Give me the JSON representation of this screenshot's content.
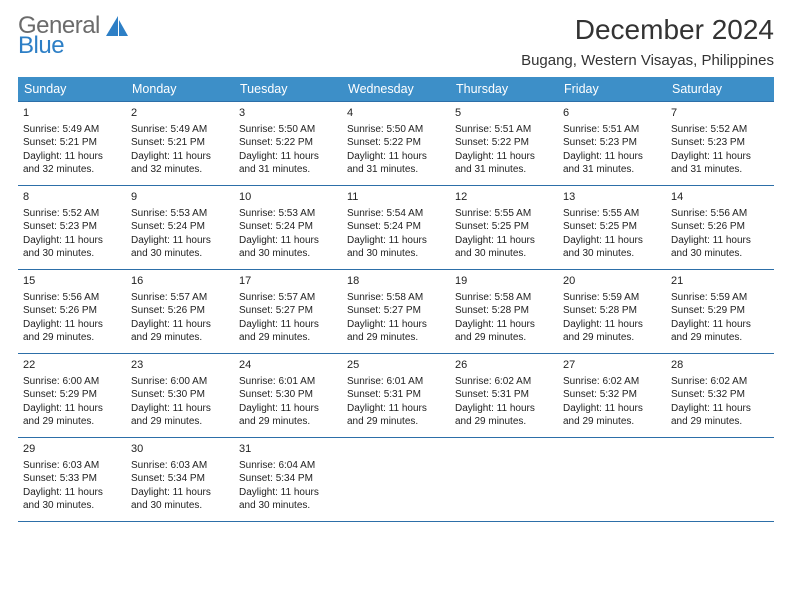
{
  "brand": {
    "line1": "General",
    "line2": "Blue"
  },
  "title": "December 2024",
  "location": "Bugang, Western Visayas, Philippines",
  "colors": {
    "header_bg": "#3d8fc8",
    "header_text": "#ffffff",
    "row_border": "#2d6fa8",
    "logo_gray": "#6b6b6b",
    "logo_blue": "#2d7fc6",
    "text": "#222222",
    "background": "#ffffff"
  },
  "day_headers": [
    "Sunday",
    "Monday",
    "Tuesday",
    "Wednesday",
    "Thursday",
    "Friday",
    "Saturday"
  ],
  "weeks": [
    [
      {
        "n": "1",
        "sr": "5:49 AM",
        "ss": "5:21 PM",
        "dl": "11 hours and 32 minutes."
      },
      {
        "n": "2",
        "sr": "5:49 AM",
        "ss": "5:21 PM",
        "dl": "11 hours and 32 minutes."
      },
      {
        "n": "3",
        "sr": "5:50 AM",
        "ss": "5:22 PM",
        "dl": "11 hours and 31 minutes."
      },
      {
        "n": "4",
        "sr": "5:50 AM",
        "ss": "5:22 PM",
        "dl": "11 hours and 31 minutes."
      },
      {
        "n": "5",
        "sr": "5:51 AM",
        "ss": "5:22 PM",
        "dl": "11 hours and 31 minutes."
      },
      {
        "n": "6",
        "sr": "5:51 AM",
        "ss": "5:23 PM",
        "dl": "11 hours and 31 minutes."
      },
      {
        "n": "7",
        "sr": "5:52 AM",
        "ss": "5:23 PM",
        "dl": "11 hours and 31 minutes."
      }
    ],
    [
      {
        "n": "8",
        "sr": "5:52 AM",
        "ss": "5:23 PM",
        "dl": "11 hours and 30 minutes."
      },
      {
        "n": "9",
        "sr": "5:53 AM",
        "ss": "5:24 PM",
        "dl": "11 hours and 30 minutes."
      },
      {
        "n": "10",
        "sr": "5:53 AM",
        "ss": "5:24 PM",
        "dl": "11 hours and 30 minutes."
      },
      {
        "n": "11",
        "sr": "5:54 AM",
        "ss": "5:24 PM",
        "dl": "11 hours and 30 minutes."
      },
      {
        "n": "12",
        "sr": "5:55 AM",
        "ss": "5:25 PM",
        "dl": "11 hours and 30 minutes."
      },
      {
        "n": "13",
        "sr": "5:55 AM",
        "ss": "5:25 PM",
        "dl": "11 hours and 30 minutes."
      },
      {
        "n": "14",
        "sr": "5:56 AM",
        "ss": "5:26 PM",
        "dl": "11 hours and 30 minutes."
      }
    ],
    [
      {
        "n": "15",
        "sr": "5:56 AM",
        "ss": "5:26 PM",
        "dl": "11 hours and 29 minutes."
      },
      {
        "n": "16",
        "sr": "5:57 AM",
        "ss": "5:26 PM",
        "dl": "11 hours and 29 minutes."
      },
      {
        "n": "17",
        "sr": "5:57 AM",
        "ss": "5:27 PM",
        "dl": "11 hours and 29 minutes."
      },
      {
        "n": "18",
        "sr": "5:58 AM",
        "ss": "5:27 PM",
        "dl": "11 hours and 29 minutes."
      },
      {
        "n": "19",
        "sr": "5:58 AM",
        "ss": "5:28 PM",
        "dl": "11 hours and 29 minutes."
      },
      {
        "n": "20",
        "sr": "5:59 AM",
        "ss": "5:28 PM",
        "dl": "11 hours and 29 minutes."
      },
      {
        "n": "21",
        "sr": "5:59 AM",
        "ss": "5:29 PM",
        "dl": "11 hours and 29 minutes."
      }
    ],
    [
      {
        "n": "22",
        "sr": "6:00 AM",
        "ss": "5:29 PM",
        "dl": "11 hours and 29 minutes."
      },
      {
        "n": "23",
        "sr": "6:00 AM",
        "ss": "5:30 PM",
        "dl": "11 hours and 29 minutes."
      },
      {
        "n": "24",
        "sr": "6:01 AM",
        "ss": "5:30 PM",
        "dl": "11 hours and 29 minutes."
      },
      {
        "n": "25",
        "sr": "6:01 AM",
        "ss": "5:31 PM",
        "dl": "11 hours and 29 minutes."
      },
      {
        "n": "26",
        "sr": "6:02 AM",
        "ss": "5:31 PM",
        "dl": "11 hours and 29 minutes."
      },
      {
        "n": "27",
        "sr": "6:02 AM",
        "ss": "5:32 PM",
        "dl": "11 hours and 29 minutes."
      },
      {
        "n": "28",
        "sr": "6:02 AM",
        "ss": "5:32 PM",
        "dl": "11 hours and 29 minutes."
      }
    ],
    [
      {
        "n": "29",
        "sr": "6:03 AM",
        "ss": "5:33 PM",
        "dl": "11 hours and 30 minutes."
      },
      {
        "n": "30",
        "sr": "6:03 AM",
        "ss": "5:34 PM",
        "dl": "11 hours and 30 minutes."
      },
      {
        "n": "31",
        "sr": "6:04 AM",
        "ss": "5:34 PM",
        "dl": "11 hours and 30 minutes."
      },
      null,
      null,
      null,
      null
    ]
  ],
  "labels": {
    "sunrise": "Sunrise:",
    "sunset": "Sunset:",
    "daylight": "Daylight:"
  }
}
